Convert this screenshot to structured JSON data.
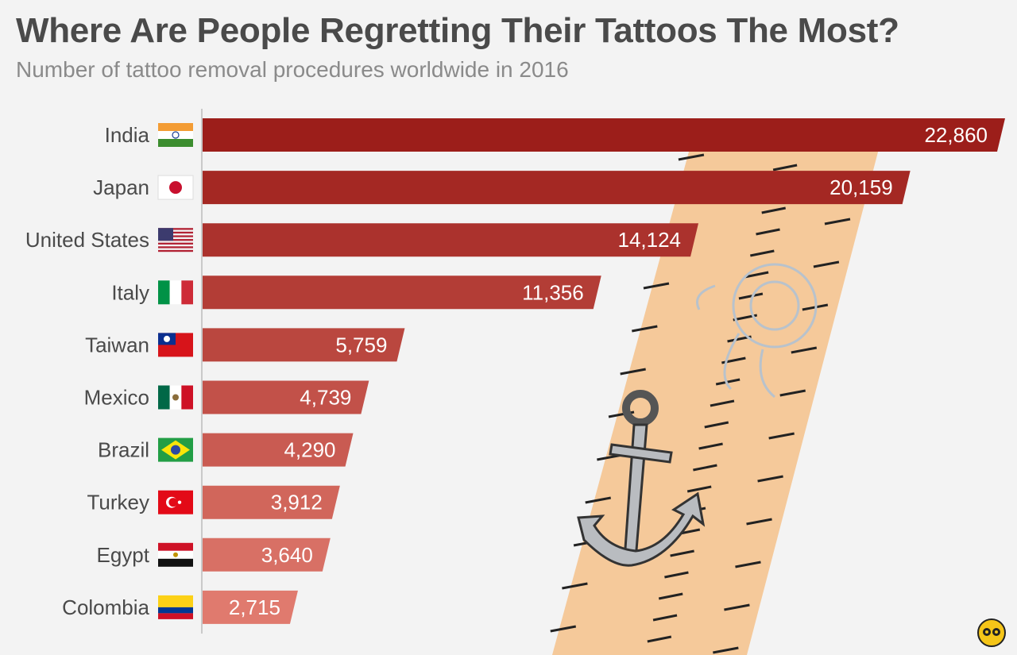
{
  "header": {
    "title": "Where Are People Regretting Their Tattoos The Most?",
    "subtitle": "Number of tattoo removal procedures worldwide in 2016"
  },
  "colors": {
    "bar_darkest": "#9c1e1a",
    "bar_lightest": "#e07a6e",
    "skin": "#f5c99a",
    "text": "#4a4a4a"
  },
  "chart_data": {
    "type": "bar",
    "orientation": "horizontal",
    "title": "Where Are People Regretting Their Tattoos The Most?",
    "subtitle": "Number of tattoo removal procedures worldwide in 2016",
    "categories": [
      "India",
      "Japan",
      "United States",
      "Italy",
      "Taiwan",
      "Mexico",
      "Brazil",
      "Turkey",
      "Egypt",
      "Colombia"
    ],
    "values": [
      22860,
      20159,
      14124,
      11356,
      5759,
      4739,
      4290,
      3912,
      3640,
      2715
    ],
    "value_labels": [
      "22,860",
      "20,159",
      "14,124",
      "11,356",
      "5,759",
      "4,739",
      "4,290",
      "3,912",
      "3,640",
      "2,715"
    ],
    "flags": [
      "india-flag",
      "japan-flag",
      "usa-flag",
      "italy-flag",
      "taiwan-flag",
      "mexico-flag",
      "brazil-flag",
      "turkey-flag",
      "egypt-flag",
      "colombia-flag"
    ],
    "xlim": [
      0,
      22860
    ],
    "grid": false,
    "legend": "none"
  }
}
